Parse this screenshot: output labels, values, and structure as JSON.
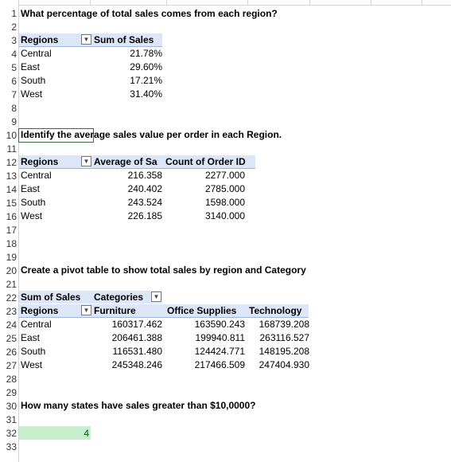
{
  "rows": [
    "1",
    "2",
    "3",
    "4",
    "5",
    "6",
    "7",
    "8",
    "9",
    "10",
    "11",
    "12",
    "13",
    "14",
    "15",
    "16",
    "17",
    "18",
    "19",
    "20",
    "21",
    "22",
    "23",
    "24",
    "25",
    "26",
    "27",
    "28",
    "29",
    "30",
    "31",
    "32",
    "33"
  ],
  "q1": {
    "question": "What percentage of total sales comes from each region?",
    "header_regions": "Regions",
    "header_value": "Sum of Sales",
    "rows": [
      {
        "region": "Central",
        "value": "21.78%"
      },
      {
        "region": "East",
        "value": "29.60%"
      },
      {
        "region": "South",
        "value": "17.21%"
      },
      {
        "region": "West",
        "value": "31.40%"
      }
    ]
  },
  "q2": {
    "question": "Identify the average sales value per order in each Region.",
    "header_regions": "Regions",
    "header_avg": "Average of Sa",
    "header_count": "Count of Order ID",
    "rows": [
      {
        "region": "Central",
        "avg": "216.358",
        "count": "2277.000"
      },
      {
        "region": "East",
        "avg": "240.402",
        "count": "2785.000"
      },
      {
        "region": "South",
        "avg": "243.524",
        "count": "1598.000"
      },
      {
        "region": "West",
        "avg": "226.185",
        "count": "3140.000"
      }
    ]
  },
  "q3": {
    "question": "Create a pivot table to show total sales by region and Category",
    "header_sum": "Sum of Sales",
    "header_categories": "Categories",
    "header_regions": "Regions",
    "cat1": "Furniture",
    "cat2": "Office Supplies",
    "cat3": "Technology",
    "rows": [
      {
        "region": "Central",
        "c1": "160317.462",
        "c2": "163590.243",
        "c3": "168739.208"
      },
      {
        "region": "East",
        "c1": "206461.388",
        "c2": "199940.811",
        "c3": "263116.527"
      },
      {
        "region": "South",
        "c1": "116531.480",
        "c2": "124424.771",
        "c3": "148195.208"
      },
      {
        "region": "West",
        "c1": "245348.246",
        "c2": "217466.509",
        "c3": "247404.930"
      }
    ]
  },
  "q4": {
    "question": "How many states have sales greater than $10,0000?",
    "answer": "4"
  },
  "icons": {
    "dropdown": "filter-dropdown-icon"
  }
}
